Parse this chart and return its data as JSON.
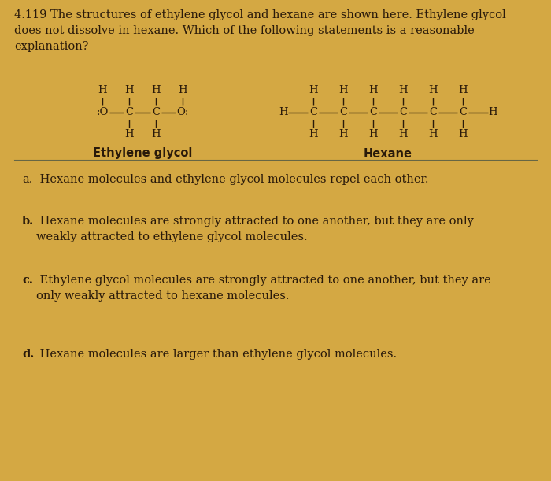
{
  "bg_color": "#D4A843",
  "text_color": "#2a1a0a",
  "title_line1": "4.119 The structures of ethylene glycol and hexane are shown here. Ethylene glycol",
  "title_line2": "does not dissolve in hexane. Which of the following statements is a reasonable",
  "title_line3": "explanation?",
  "label_eg": "Ethylene glycol",
  "label_hex": "Hexane",
  "fs_title": 10.5,
  "fs_struct": 9.5,
  "fs_body": 10.5
}
